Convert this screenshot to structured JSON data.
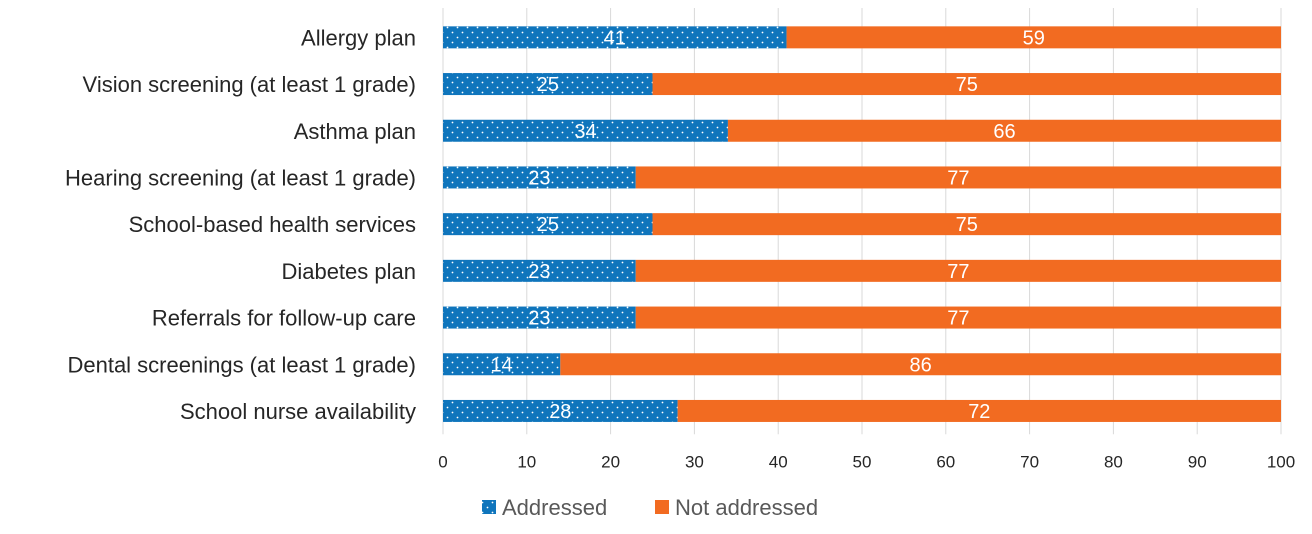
{
  "chart_data": {
    "type": "bar",
    "orientation": "horizontal",
    "stacked": true,
    "categories": [
      "Allergy plan",
      "Vision screening (at least 1 grade)",
      "Asthma plan",
      "Hearing screening (at least 1 grade)",
      "School-based health services",
      "Diabetes plan",
      "Referrals for follow-up care",
      "Dental screenings (at least 1 grade)",
      "School nurse availability"
    ],
    "series": [
      {
        "name": "Addressed",
        "color": "#0f75bc",
        "pattern": "dotted",
        "values": [
          41,
          25,
          34,
          23,
          25,
          23,
          23,
          14,
          28
        ]
      },
      {
        "name": "Not addressed",
        "color": "#f26b21",
        "pattern": "solid",
        "values": [
          59,
          75,
          66,
          77,
          75,
          77,
          77,
          86,
          72
        ]
      }
    ],
    "xlim": [
      0,
      100
    ],
    "xticks": [
      "0",
      "10",
      "20",
      "30",
      "40",
      "50",
      "60",
      "70",
      "80",
      "90",
      "100"
    ],
    "grid": true,
    "legend_position": "bottom",
    "data_labels": true
  }
}
